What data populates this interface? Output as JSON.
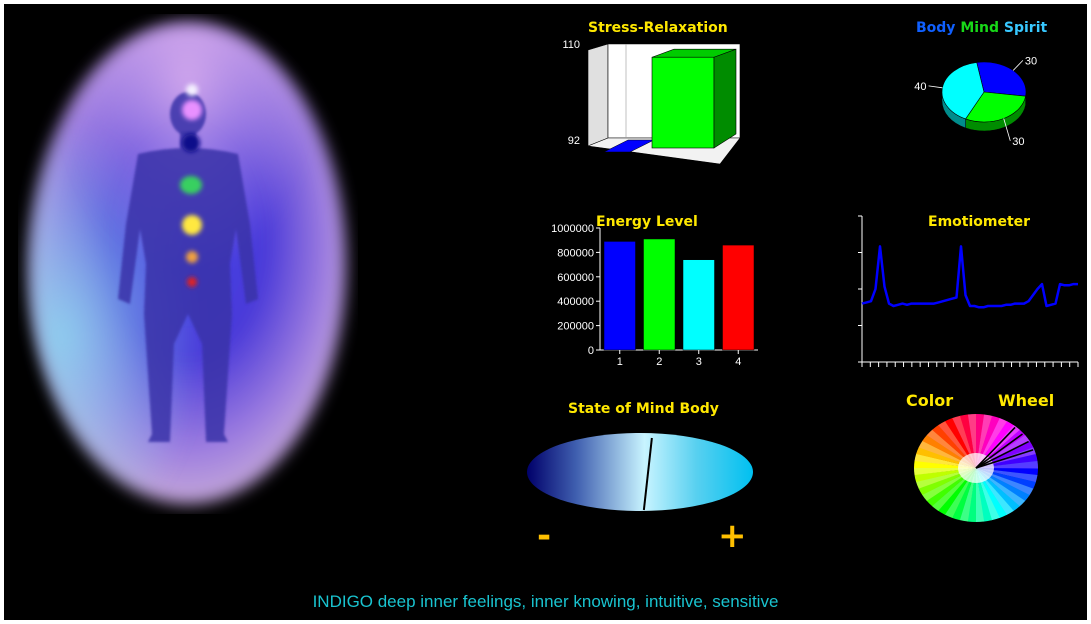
{
  "colors": {
    "background": "#000000",
    "title": "#ffe800",
    "status_text": "#19c3cf",
    "sign": "#ffc000",
    "blue": "#0000ff",
    "green": "#00ff00",
    "cyan": "#00ffff",
    "red": "#ff0000",
    "body_label": "#1060ff",
    "mind_label": "#18d818",
    "spirit_label": "#38c8ff"
  },
  "aura": {
    "icons": [
      "crown-chakra-icon",
      "third-eye-chakra-icon",
      "throat-chakra-icon",
      "heart-chakra-icon",
      "solar-plexus-chakra-icon",
      "sacral-chakra-icon",
      "root-chakra-icon"
    ]
  },
  "stress": {
    "title": "Stress-Relaxation",
    "y_max_label": "110",
    "y_min_label": "92"
  },
  "bmspie": {
    "title_body": "Body",
    "title_mind": "Mind",
    "title_spirit": "Spirit"
  },
  "energy": {
    "title": "Energy Level"
  },
  "emotiometer": {
    "title": "Emotiometer"
  },
  "statemind": {
    "title": "State of Mind Body",
    "minus": "-",
    "plus": "+"
  },
  "colorwheel": {
    "title_left": "Color",
    "title_right": "Wheel"
  },
  "status": {
    "text": "INDIGO deep inner feelings, inner knowing, intuitive, sensitive"
  },
  "chart_data": [
    {
      "type": "bar",
      "title": "Stress-Relaxation",
      "yticks": [
        "110",
        "92"
      ],
      "ylim": [
        92,
        110
      ],
      "series": [
        {
          "color": "#0000ff",
          "values": [
            92.8
          ]
        },
        {
          "color": "#00ff00",
          "values": [
            109
          ]
        }
      ],
      "xlabel": "",
      "ylabel": ""
    },
    {
      "type": "pie",
      "title": "Body Mind Spirit",
      "labels": [
        "Body",
        "Mind",
        "Spirit"
      ],
      "values": [
        30,
        30,
        40
      ],
      "colors": [
        "#0000ff",
        "#00ff00",
        "#00ffff"
      ]
    },
    {
      "type": "bar",
      "title": "Energy Level",
      "categories": [
        "1",
        "2",
        "3",
        "4"
      ],
      "values": [
        890000,
        910000,
        740000,
        860000
      ],
      "colors": [
        "#0000ff",
        "#00ff00",
        "#00ffff",
        "#ff0000"
      ],
      "yticks": [
        0,
        200000,
        400000,
        600000,
        800000,
        1000000
      ],
      "ylim": [
        0,
        1000000
      ],
      "xlabel": "",
      "ylabel": ""
    },
    {
      "type": "line",
      "title": "Emotiometer",
      "x": [
        0,
        1,
        2,
        3,
        4,
        5,
        6,
        7,
        8,
        9,
        10,
        11,
        12,
        13,
        14,
        15,
        16,
        17,
        18,
        19,
        20,
        21,
        22,
        23,
        24,
        25,
        26,
        27,
        28,
        29,
        30,
        31,
        32,
        33,
        34,
        35,
        36,
        37,
        38,
        39,
        40,
        41,
        42,
        43,
        44,
        45,
        46,
        47,
        48
      ],
      "series": [
        {
          "color": "#0000ff",
          "values": [
            0.48,
            0.49,
            0.5,
            0.6,
            0.95,
            0.62,
            0.48,
            0.46,
            0.47,
            0.48,
            0.47,
            0.48,
            0.48,
            0.48,
            0.48,
            0.48,
            0.48,
            0.49,
            0.5,
            0.51,
            0.52,
            0.53,
            0.95,
            0.55,
            0.46,
            0.46,
            0.45,
            0.45,
            0.46,
            0.46,
            0.46,
            0.46,
            0.47,
            0.47,
            0.48,
            0.48,
            0.48,
            0.5,
            0.55,
            0.6,
            0.64,
            0.46,
            0.47,
            0.48,
            0.64,
            0.63,
            0.63,
            0.64,
            0.64
          ]
        }
      ],
      "ylim": [
        0,
        1.2
      ],
      "xlabel": "",
      "ylabel": ""
    },
    {
      "type": "gauge",
      "title": "State of Mind Body",
      "range_labels": [
        "-",
        "+"
      ],
      "value": 0.53
    },
    {
      "type": "color-wheel",
      "title": "Color Wheel",
      "pointer_angles_deg": [
        -20,
        -30,
        -40,
        -50
      ]
    }
  ]
}
